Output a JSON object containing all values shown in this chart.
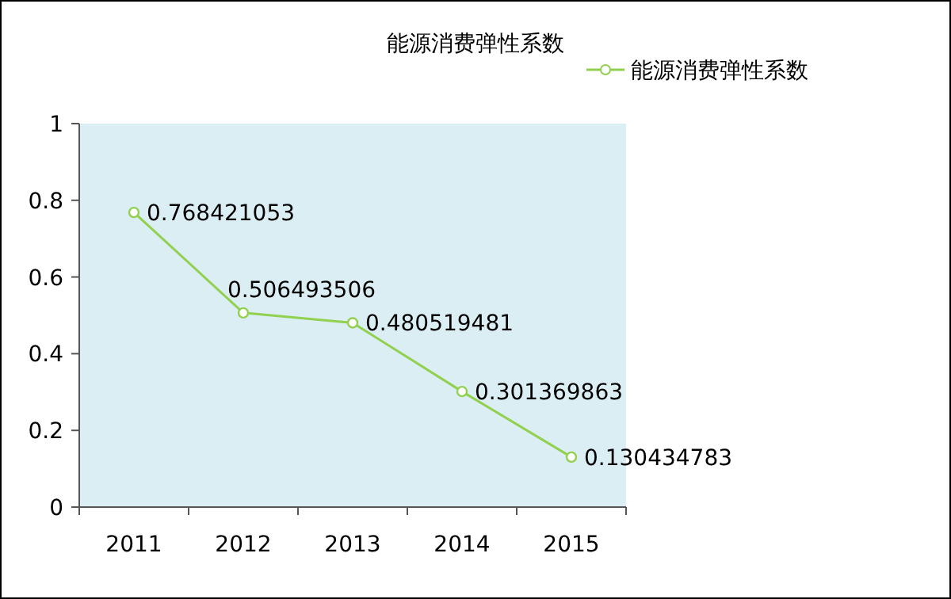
{
  "chart_data": {
    "type": "line",
    "title": "能源消费弹性系数",
    "categories": [
      "2011",
      "2012",
      "2013",
      "2014",
      "2015"
    ],
    "series": [
      {
        "name": "能源消费弹性系数",
        "color": "#92d050",
        "values": [
          0.768421053,
          0.506493506,
          0.480519481,
          0.301369863,
          0.130434783
        ]
      }
    ],
    "ylim": [
      0,
      1
    ],
    "yticks": [
      0,
      0.2,
      0.4,
      0.6,
      0.8,
      1
    ],
    "data_labels": true,
    "legend": "top right",
    "marker": "circle",
    "line_style": "solid",
    "grid": false
  }
}
